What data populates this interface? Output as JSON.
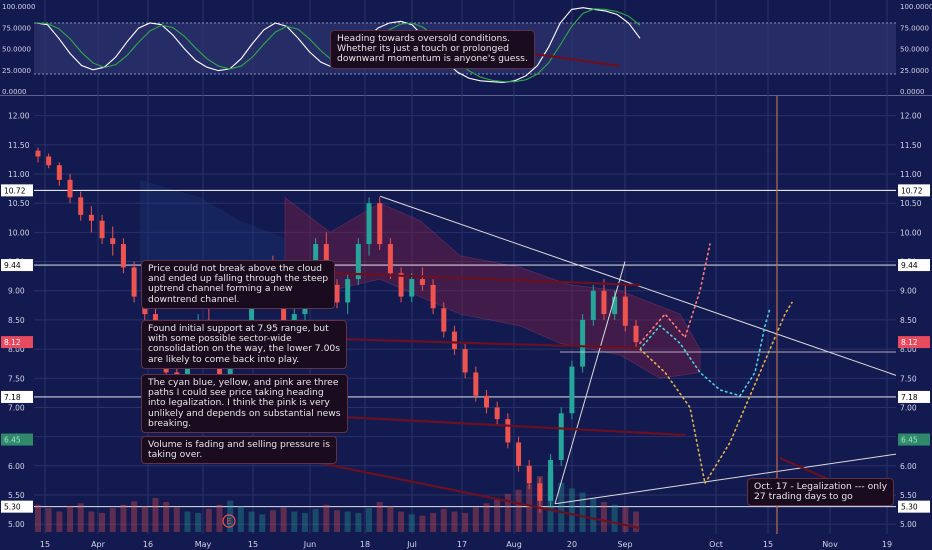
{
  "colors": {
    "background": "#131a4f",
    "grid": "#2a3168",
    "up": "#26a69a",
    "down": "#ef5350",
    "stoch_k": "#ffffff",
    "stoch_d": "#2ea84a",
    "cloud_a": "#7a1f45",
    "cloud_b": "#1e3a7a",
    "cyan_path": "#4dd0e1",
    "yellow_path": "#e0b050",
    "pink_path": "#ff7b7b",
    "legalization_line": "#c26a4a"
  },
  "annotations": {
    "oscillator_note": "Heading towards oversold conditions.\nWhether its just a touch or prolonged\ndownward momentum is anyone's guess.",
    "cloud_note": "Price could not break above the cloud\nand ended up falling through the steep\nuptrend channel forming a new\ndowntrend channel.",
    "support_note": "Found initial support at 7.95 range, but\nwith some possible sector-wide\nconsolidation on the way, the lower 7.00s\nare likely to come back into play.",
    "paths_note": "The cyan blue, yellow, and pink are three\npaths I could see price taking heading\ninto legalization. I think the pink is very\nunlikely and depends on substantial news\nbreaking.",
    "volume_note": "Volume is fading and selling pressure is\ntaking over.",
    "legalization_note": "Oct. 17 - Legalization --- only\n27 trading days to go",
    "earnings_marker": "E"
  },
  "chart_data": [
    {
      "type": "line",
      "name": "stochastic-oscillator",
      "ylim": [
        0,
        100
      ],
      "y_ticks": [
        "0.0000",
        "25.0000",
        "50.0000",
        "75.0000",
        "100.0000"
      ],
      "overbought": 80,
      "oversold": 20,
      "k_values": [
        80,
        78,
        62,
        44,
        30,
        25,
        28,
        40,
        58,
        74,
        80,
        78,
        66,
        50,
        36,
        28,
        24,
        26,
        38,
        56,
        72,
        80,
        76,
        62,
        46,
        34,
        28,
        32,
        45,
        62,
        74,
        80,
        82,
        78,
        64,
        48,
        34,
        22,
        15,
        12,
        11,
        10,
        12,
        18,
        30,
        52,
        80,
        96,
        98,
        96,
        94,
        90,
        80,
        62
      ]
    },
    {
      "type": "candlestick",
      "name": "price",
      "ylim": [
        4.9,
        12.2
      ],
      "y_ticks": [
        "5.00",
        "5.50",
        "6.00",
        "6.50",
        "7.00",
        "7.50",
        "8.00",
        "8.50",
        "9.00",
        "9.50",
        "10.00",
        "10.50",
        "11.00",
        "11.50",
        "12.00"
      ],
      "x_labels": [
        "15",
        "Apr",
        "16",
        "May",
        "15",
        "Jun",
        "18",
        "Jul",
        "17",
        "Aug",
        "20",
        "Sep",
        "Oct",
        "15",
        "Nov",
        "19"
      ],
      "level_labels": [
        "10.72",
        "9.44",
        "8.12",
        "7.18",
        "6.45",
        "5.30"
      ],
      "levels": [
        10.72,
        9.44,
        7.18,
        5.3
      ],
      "last_price": 8.12,
      "ohlc": [
        [
          11.4,
          11.45,
          11.2,
          11.3
        ],
        [
          11.3,
          11.35,
          11.1,
          11.15
        ],
        [
          11.15,
          11.2,
          10.8,
          10.9
        ],
        [
          10.9,
          11.0,
          10.5,
          10.6
        ],
        [
          10.6,
          10.7,
          10.2,
          10.3
        ],
        [
          10.3,
          10.45,
          10.0,
          10.2
        ],
        [
          10.2,
          10.3,
          9.8,
          9.9
        ],
        [
          9.9,
          10.1,
          9.6,
          9.8
        ],
        [
          9.8,
          9.9,
          9.3,
          9.4
        ],
        [
          9.4,
          9.5,
          8.8,
          8.9
        ],
        [
          8.9,
          9.1,
          8.5,
          8.6
        ],
        [
          8.6,
          8.8,
          8.1,
          8.2
        ],
        [
          8.2,
          8.3,
          7.5,
          7.6
        ],
        [
          7.6,
          7.9,
          7.2,
          7.5
        ],
        [
          7.5,
          8.1,
          7.4,
          8.0
        ],
        [
          8.0,
          8.6,
          7.9,
          8.5
        ],
        [
          8.5,
          8.7,
          7.8,
          7.9
        ],
        [
          7.9,
          8.0,
          7.4,
          7.5
        ],
        [
          7.5,
          7.9,
          7.3,
          7.8
        ],
        [
          7.8,
          8.5,
          7.7,
          8.4
        ],
        [
          8.4,
          8.9,
          8.3,
          8.8
        ],
        [
          8.8,
          9.4,
          8.7,
          9.3
        ],
        [
          9.3,
          9.6,
          8.9,
          9.0
        ],
        [
          9.0,
          9.1,
          8.2,
          8.3
        ],
        [
          8.3,
          8.7,
          8.1,
          8.6
        ],
        [
          8.6,
          9.2,
          8.5,
          9.1
        ],
        [
          9.1,
          9.9,
          9.0,
          9.8
        ],
        [
          9.8,
          10.0,
          9.0,
          9.1
        ],
        [
          9.1,
          9.2,
          8.7,
          8.8
        ],
        [
          8.8,
          9.3,
          8.6,
          9.2
        ],
        [
          9.2,
          9.9,
          9.1,
          9.8
        ],
        [
          9.8,
          10.6,
          9.6,
          10.5
        ],
        [
          10.5,
          10.6,
          9.7,
          9.8
        ],
        [
          9.8,
          9.9,
          9.2,
          9.3
        ],
        [
          9.3,
          9.4,
          8.8,
          8.9
        ],
        [
          8.9,
          9.3,
          8.8,
          9.2
        ],
        [
          9.2,
          9.4,
          9.0,
          9.1
        ],
        [
          9.1,
          9.2,
          8.6,
          8.7
        ],
        [
          8.7,
          8.8,
          8.2,
          8.3
        ],
        [
          8.3,
          8.4,
          7.9,
          8.0
        ],
        [
          8.0,
          8.1,
          7.5,
          7.6
        ],
        [
          7.6,
          7.7,
          7.1,
          7.2
        ],
        [
          7.2,
          7.3,
          6.9,
          7.0
        ],
        [
          7.0,
          7.1,
          6.7,
          6.8
        ],
        [
          6.8,
          6.9,
          6.3,
          6.4
        ],
        [
          6.4,
          6.5,
          5.9,
          6.0
        ],
        [
          6.0,
          6.1,
          5.6,
          5.7
        ],
        [
          5.7,
          5.8,
          5.2,
          5.4
        ],
        [
          5.4,
          6.2,
          5.3,
          6.1
        ],
        [
          6.1,
          7.0,
          6.0,
          6.9
        ],
        [
          6.9,
          7.8,
          6.8,
          7.7
        ],
        [
          7.7,
          8.6,
          7.6,
          8.5
        ],
        [
          8.5,
          9.1,
          8.4,
          9.0
        ],
        [
          9.0,
          9.2,
          8.5,
          8.6
        ],
        [
          8.6,
          9.0,
          8.5,
          8.9
        ],
        [
          8.9,
          9.1,
          8.3,
          8.4
        ],
        [
          8.4,
          8.5,
          8.0,
          8.12
        ]
      ]
    },
    {
      "type": "bar",
      "name": "volume",
      "values": [
        40,
        35,
        30,
        38,
        42,
        30,
        28,
        35,
        40,
        45,
        38,
        50,
        44,
        36,
        30,
        28,
        34,
        40,
        46,
        38,
        30,
        26,
        32,
        36,
        30,
        28,
        34,
        40,
        32,
        30,
        28,
        35,
        44,
        38,
        30,
        26,
        24,
        28,
        34,
        30,
        28,
        36,
        42,
        48,
        56,
        62,
        70,
        82,
        88,
        72,
        64,
        58,
        50,
        44,
        40,
        36,
        30
      ]
    }
  ]
}
